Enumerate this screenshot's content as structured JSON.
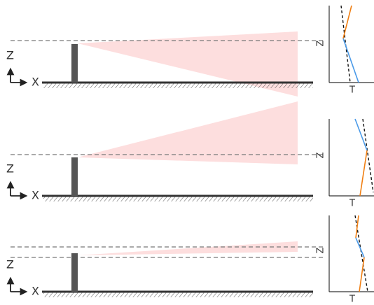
{
  "panels": [
    {
      "z_label": "Z",
      "x_label": "X",
      "profile_z": "Z",
      "profile_t": "T"
    },
    {
      "z_label": "Z",
      "x_label": "X",
      "profile_z": "Z",
      "profile_t": "T"
    },
    {
      "z_label": "Z",
      "x_label": "X",
      "profile_z": "Z",
      "profile_t": "T"
    }
  ]
}
